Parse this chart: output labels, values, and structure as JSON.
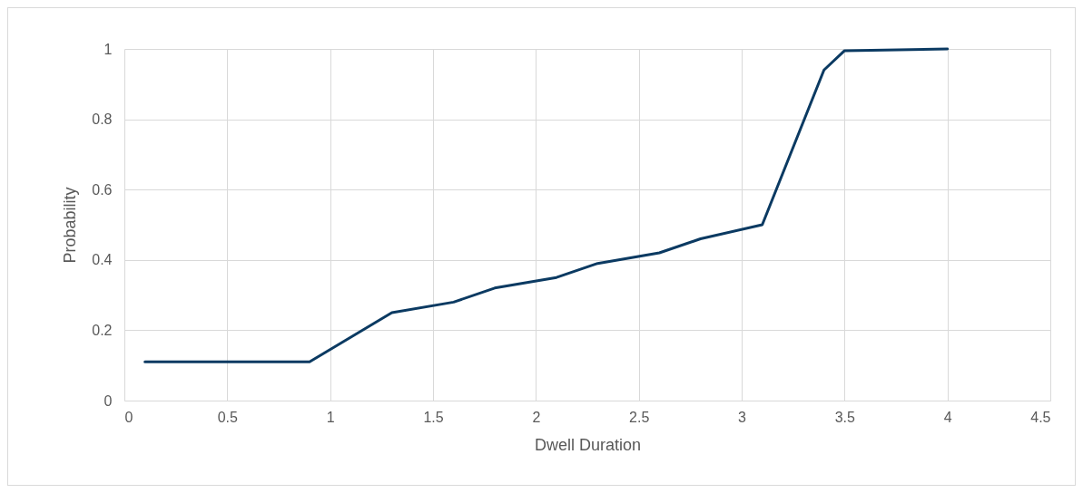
{
  "chart_data": {
    "type": "line",
    "xlabel": "Dwell Duration",
    "ylabel": "Probability",
    "x": [
      0.1,
      0.9,
      1.3,
      1.6,
      1.8,
      2.1,
      2.3,
      2.6,
      2.8,
      3.1,
      3.4,
      3.5,
      4.0
    ],
    "series": [
      {
        "color": "#0b3a62",
        "values": [
          0.11,
          0.11,
          0.25,
          0.28,
          0.32,
          0.35,
          0.39,
          0.42,
          0.46,
          0.5,
          0.94,
          0.995,
          1.0
        ]
      }
    ],
    "xlim": [
      0,
      4.5
    ],
    "xticks": [
      0,
      0.5,
      1,
      1.5,
      2,
      2.5,
      3,
      3.5,
      4,
      4.5
    ],
    "ylim": [
      0,
      1
    ],
    "yticks": [
      0,
      0.2,
      0.4,
      0.6,
      0.8,
      1
    ],
    "grid": true,
    "marker": "none",
    "line_style": "solid"
  }
}
